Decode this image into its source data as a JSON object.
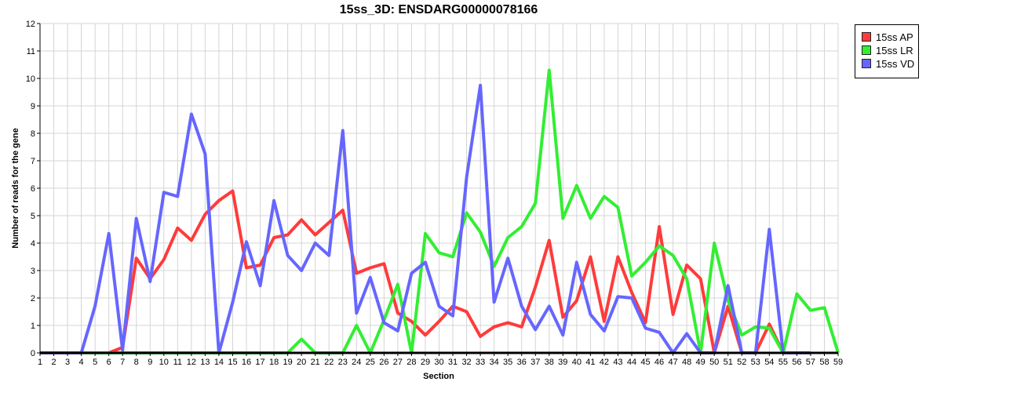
{
  "chart_data": {
    "type": "line",
    "title": "15ss_3D: ENSDARG00000078166",
    "xlabel": "Section",
    "ylabel": "Number of reads for the gene",
    "ylim": [
      0,
      12
    ],
    "xlim": [
      1,
      59
    ],
    "grid": true,
    "legend_position": "top-right",
    "x": [
      1,
      2,
      3,
      4,
      5,
      6,
      7,
      8,
      9,
      10,
      11,
      12,
      13,
      14,
      15,
      16,
      17,
      18,
      19,
      20,
      21,
      22,
      23,
      24,
      25,
      26,
      27,
      28,
      29,
      30,
      31,
      32,
      33,
      34,
      35,
      36,
      37,
      38,
      39,
      40,
      41,
      42,
      43,
      44,
      45,
      46,
      47,
      48,
      49,
      50,
      51,
      52,
      53,
      54,
      55,
      56,
      57,
      58,
      59
    ],
    "x_ticks": [
      "1",
      "2",
      "3",
      "4",
      "5",
      "6",
      "7",
      "8",
      "9",
      "10",
      "11",
      "12",
      "13",
      "14",
      "15",
      "16",
      "17",
      "18",
      "19",
      "20",
      "21",
      "22",
      "23",
      "24",
      "25",
      "26",
      "27",
      "28",
      "29",
      "30",
      "31",
      "32",
      "33",
      "34",
      "35",
      "36",
      "37",
      "38",
      "39",
      "40",
      "41",
      "42",
      "43",
      "44",
      "45",
      "46",
      "47",
      "48",
      "49",
      "50",
      "51",
      "52",
      "53",
      "54",
      "55",
      "56",
      "57",
      "58",
      "59"
    ],
    "y_ticks": [
      "0",
      "1",
      "2",
      "3",
      "4",
      "5",
      "6",
      "7",
      "8",
      "9",
      "10",
      "11",
      "12"
    ],
    "series": [
      {
        "name": "15ss AP",
        "color": "#ff3b3b",
        "values": [
          0,
          0,
          0,
          0,
          0,
          0,
          0.2,
          3.45,
          2.7,
          3.4,
          4.55,
          4.1,
          5.05,
          5.55,
          5.9,
          3.1,
          3.2,
          4.2,
          4.3,
          4.85,
          4.3,
          4.75,
          5.2,
          2.9,
          3.1,
          3.25,
          1.45,
          1.15,
          0.65,
          1.15,
          1.7,
          1.5,
          0.6,
          0.95,
          1.1,
          0.95,
          2.4,
          4.1,
          1.3,
          1.9,
          3.5,
          1.15,
          3.5,
          2.2,
          1.1,
          4.6,
          1.4,
          3.2,
          2.7,
          0,
          1.7,
          0,
          0,
          1.05,
          0,
          null,
          null,
          null,
          null
        ]
      },
      {
        "name": "15ss LR",
        "color": "#33ee33",
        "values": [
          0,
          0,
          0,
          0,
          0,
          0,
          0,
          0,
          0,
          0,
          0,
          0,
          0,
          0,
          0,
          0,
          0,
          0,
          0,
          0.5,
          0,
          0,
          0,
          1,
          0,
          1.2,
          2.5,
          0,
          4.35,
          3.65,
          3.5,
          5.1,
          4.4,
          3.15,
          4.2,
          4.6,
          5.45,
          10.3,
          4.9,
          6.1,
          4.9,
          5.7,
          5.3,
          2.8,
          3.3,
          3.9,
          3.55,
          2.7,
          0,
          4,
          1.9,
          0.65,
          0.95,
          0.9,
          0,
          2.15,
          1.55,
          1.65,
          0
        ]
      },
      {
        "name": "15ss VD",
        "color": "#6666ff",
        "values": [
          0,
          0,
          0,
          0,
          1.7,
          4.35,
          0.1,
          4.9,
          2.6,
          5.85,
          5.7,
          8.7,
          7.25,
          0,
          1.85,
          4.05,
          2.45,
          5.55,
          3.55,
          3.0,
          4.0,
          3.55,
          8.1,
          1.45,
          2.75,
          1.1,
          0.8,
          2.9,
          3.3,
          1.7,
          1.35,
          6.4,
          9.75,
          1.85,
          3.45,
          1.7,
          0.85,
          1.7,
          0.65,
          3.3,
          1.4,
          0.8,
          2.05,
          2.0,
          0.9,
          0.75,
          0,
          0.7,
          0,
          0,
          2.45,
          0,
          0,
          4.5,
          0,
          0,
          0,
          null,
          null
        ]
      }
    ]
  }
}
